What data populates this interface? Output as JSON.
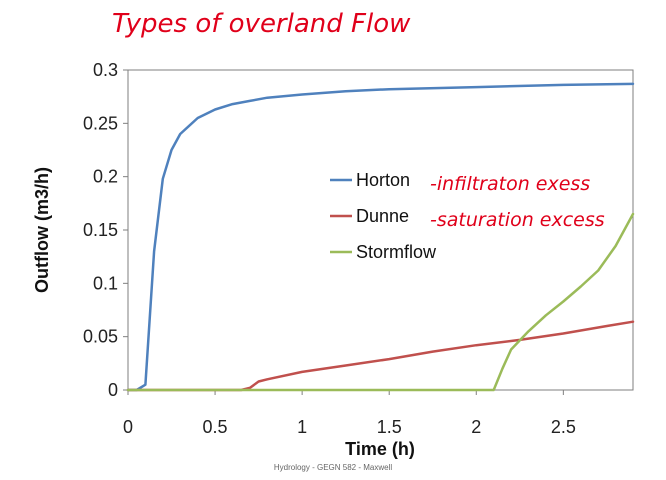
{
  "slide": {
    "handwritten_title": "Types of overland Flow",
    "footer": "Hydrology - GEGN 582 - Maxwell",
    "annotations": {
      "horton": "-infiltraton exess",
      "dunne": "-saturation excess"
    },
    "annotation_color": "#e0001a"
  },
  "chart_data": {
    "type": "line",
    "title": "",
    "xlabel": "Time (h)",
    "ylabel": "Outflow (m3/h)",
    "xlim": [
      0,
      2.9
    ],
    "ylim": [
      0,
      0.3
    ],
    "xticks": [
      "0",
      "0.5",
      "1",
      "1.5",
      "2",
      "2.5"
    ],
    "yticks": [
      "0",
      "0.05",
      "0.1",
      "0.15",
      "0.2",
      "0.25",
      "0.3"
    ],
    "grid": false,
    "legend_position": "center-right",
    "series": [
      {
        "name": "Horton",
        "color": "#4f81bd",
        "points": [
          [
            0,
            0
          ],
          [
            0.05,
            0
          ],
          [
            0.1,
            0.005
          ],
          [
            0.15,
            0.13
          ],
          [
            0.2,
            0.198
          ],
          [
            0.25,
            0.225
          ],
          [
            0.3,
            0.24
          ],
          [
            0.4,
            0.255
          ],
          [
            0.5,
            0.263
          ],
          [
            0.6,
            0.268
          ],
          [
            0.7,
            0.271
          ],
          [
            0.8,
            0.274
          ],
          [
            1.0,
            0.277
          ],
          [
            1.25,
            0.28
          ],
          [
            1.5,
            0.282
          ],
          [
            2.0,
            0.284
          ],
          [
            2.5,
            0.286
          ],
          [
            2.9,
            0.287
          ]
        ]
      },
      {
        "name": "Dunne",
        "color": "#c0504d",
        "points": [
          [
            0,
            0
          ],
          [
            0.65,
            0
          ],
          [
            0.7,
            0.002
          ],
          [
            0.75,
            0.008
          ],
          [
            0.8,
            0.01
          ],
          [
            1.0,
            0.017
          ],
          [
            1.25,
            0.023
          ],
          [
            1.5,
            0.029
          ],
          [
            1.75,
            0.036
          ],
          [
            2.0,
            0.042
          ],
          [
            2.25,
            0.047
          ],
          [
            2.5,
            0.053
          ],
          [
            2.75,
            0.06
          ],
          [
            2.9,
            0.064
          ]
        ]
      },
      {
        "name": "Stormflow",
        "color": "#9bbb59",
        "points": [
          [
            0,
            0
          ],
          [
            2.1,
            0
          ],
          [
            2.15,
            0.02
          ],
          [
            2.2,
            0.038
          ],
          [
            2.3,
            0.055
          ],
          [
            2.4,
            0.07
          ],
          [
            2.5,
            0.083
          ],
          [
            2.6,
            0.097
          ],
          [
            2.7,
            0.112
          ],
          [
            2.8,
            0.135
          ],
          [
            2.9,
            0.165
          ]
        ]
      }
    ]
  }
}
